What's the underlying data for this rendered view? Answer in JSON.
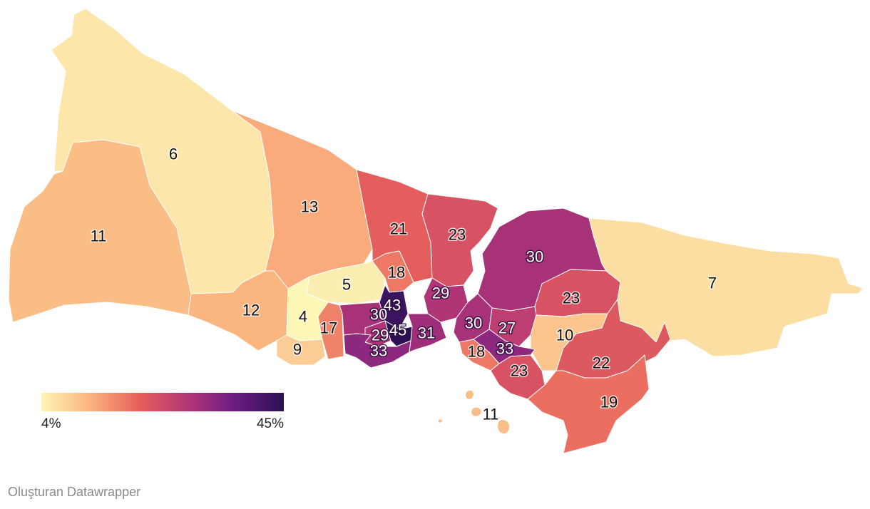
{
  "legend": {
    "min_label": "4%",
    "max_label": "45%",
    "colors": [
      "#fcf6b7",
      "#fbb37e",
      "#e7615b",
      "#b33675",
      "#6a1c83",
      "#2c1052"
    ]
  },
  "credit": "Oluşturan Datawrapper",
  "districts": [
    {
      "value": 6,
      "label": "6"
    },
    {
      "value": 11,
      "label": "11"
    },
    {
      "value": 13,
      "label": "13"
    },
    {
      "value": 12,
      "label": "12"
    },
    {
      "value": 5,
      "label": "5"
    },
    {
      "value": 4,
      "label": "4"
    },
    {
      "value": 9,
      "label": "9"
    },
    {
      "value": 17,
      "label": "17"
    },
    {
      "value": 21,
      "label": "21"
    },
    {
      "value": 23,
      "label": "23"
    },
    {
      "value": 18,
      "label": "18"
    },
    {
      "value": 29,
      "label": "29"
    },
    {
      "value": 43,
      "label": "43"
    },
    {
      "value": 30,
      "label": "30"
    },
    {
      "value": 29,
      "label": "29"
    },
    {
      "value": 45,
      "label": "45"
    },
    {
      "value": 33,
      "label": "33"
    },
    {
      "value": 31,
      "label": "31"
    },
    {
      "value": 30,
      "label": "30"
    },
    {
      "value": 23,
      "label": "23"
    },
    {
      "value": 7,
      "label": "7"
    },
    {
      "value": 30,
      "label": "30"
    },
    {
      "value": 27,
      "label": "27"
    },
    {
      "value": 10,
      "label": "10"
    },
    {
      "value": 18,
      "label": "18"
    },
    {
      "value": 33,
      "label": "33"
    },
    {
      "value": 23,
      "label": "23"
    },
    {
      "value": 22,
      "label": "22"
    },
    {
      "value": 19,
      "label": "19"
    },
    {
      "value": 11,
      "label": "11"
    }
  ]
}
